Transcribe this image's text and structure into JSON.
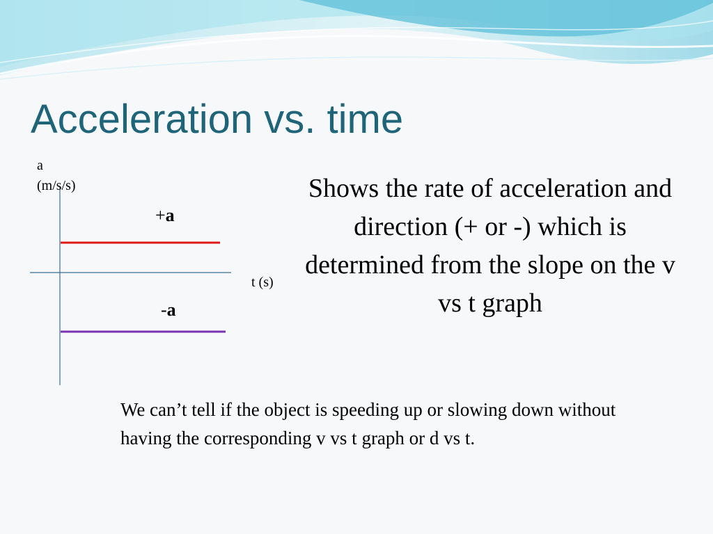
{
  "slide": {
    "title": "Acceleration vs. time",
    "description": "Shows the rate of acceleration and direction (+ or -) which is determined from the slope on the v vs t graph",
    "note": "We can’t tell if the object is speeding up or slowing down without having the corresponding v vs t graph or d vs t."
  },
  "graph": {
    "y_label_line1": "a",
    "y_label_line2": "(m/s/s)",
    "x_label": "t (s)",
    "positive_sign": "+",
    "positive_letter": "a",
    "negative_sign": "-",
    "negative_letter": "a"
  },
  "colors": {
    "title": "#1f6479",
    "axis": "#3b6f9c",
    "positive_line": "#e01818",
    "negative_line": "#7a34b0",
    "wave_light": "#c9ecf2",
    "wave_mid": "#84d3e3",
    "wave_dark": "#56bcd6"
  }
}
